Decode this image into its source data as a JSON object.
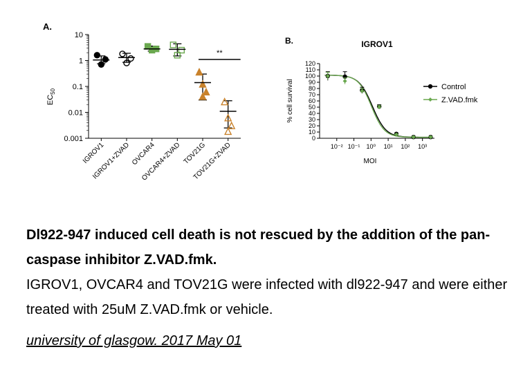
{
  "chart_data": [
    {
      "type": "scatter",
      "panel_label": "A.",
      "ylabel": "EC",
      "ylabel_sub": "50",
      "yscale": "log",
      "ylim": [
        0.001,
        10
      ],
      "yticks": [
        "0.001",
        "0.01",
        "0.1",
        "1",
        "10"
      ],
      "yticks_values": [
        0.001,
        0.01,
        0.1,
        1,
        10
      ],
      "categories": [
        "IGROV1",
        "IGROV1+ZVAD",
        "OVCAR4",
        "OVCAR4+ZVAD",
        "TOV21G",
        "TOV21G+ZVAD"
      ],
      "groups": [
        {
          "category": "IGROV1",
          "marker": "circle-filled",
          "color": "#000000",
          "values": [
            1.6,
            1.1,
            0.7
          ],
          "mean": 1.05,
          "err": [
            0.75,
            1.5
          ]
        },
        {
          "category": "IGROV1+ZVAD",
          "marker": "circle-open",
          "color": "#000000",
          "values": [
            1.8,
            1.2,
            0.8
          ],
          "mean": 1.3,
          "err": [
            0.85,
            1.9
          ]
        },
        {
          "category": "OVCAR4",
          "marker": "square-filled",
          "color": "#6aa84f",
          "values": [
            3.5,
            2.8,
            2.5
          ],
          "mean": 2.8,
          "err": [
            2.3,
            3.6
          ]
        },
        {
          "category": "OVCAR4+ZVAD",
          "marker": "square-open",
          "color": "#6aa84f",
          "values": [
            4.0,
            2.5,
            1.6
          ],
          "mean": 2.7,
          "err": [
            1.5,
            4.4
          ]
        },
        {
          "category": "TOV21G",
          "marker": "triangle-filled",
          "color": "#c9822b",
          "values": [
            0.35,
            0.12,
            0.06,
            0.04
          ],
          "mean": 0.14,
          "err": [
            0.03,
            0.3
          ]
        },
        {
          "category": "TOV21G+ZVAD",
          "marker": "triangle-open",
          "color": "#c9822b",
          "values": [
            0.025,
            0.006,
            0.003,
            0.0018
          ],
          "mean": 0.011,
          "err": [
            0.0025,
            0.028
          ]
        }
      ],
      "significance": {
        "label": "**",
        "from": "TOV21G",
        "to": "TOV21G+ZVAD"
      }
    },
    {
      "type": "line",
      "panel_label": "B.",
      "title": "IGROV1",
      "xlabel": "MOI",
      "ylabel": "% cell survival",
      "xscale": "log",
      "xlim": [
        0.01,
        1000
      ],
      "xticks": [
        "10⁻²",
        "10⁻¹",
        "10⁰",
        "10¹",
        "10²",
        "10³"
      ],
      "xticks_values": [
        0.01,
        0.1,
        1,
        10,
        100,
        1000
      ],
      "ylim": [
        0,
        120
      ],
      "yticks": [
        "0",
        "10",
        "20",
        "30",
        "40",
        "50",
        "60",
        "70",
        "80",
        "90",
        "100",
        "110",
        "120"
      ],
      "yticks_values": [
        0,
        10,
        20,
        30,
        40,
        50,
        60,
        70,
        80,
        90,
        100,
        110,
        120
      ],
      "legend_position": "right",
      "series": [
        {
          "name": "Control",
          "color": "#000000",
          "marker": "circle",
          "x": [
            0.003,
            0.03,
            0.3,
            3,
            30,
            300,
            3000
          ],
          "y": [
            100,
            99,
            77,
            51,
            7,
            2,
            2
          ],
          "err": [
            7,
            8,
            5,
            3,
            1,
            1,
            1
          ]
        },
        {
          "name": "Z.VAD.fmk",
          "color": "#6aa84f",
          "marker": "diamond",
          "x": [
            0.003,
            0.03,
            0.3,
            3,
            30,
            300,
            3000
          ],
          "y": [
            100,
            92,
            76,
            50,
            6,
            2,
            2
          ],
          "err": [
            6,
            5,
            4,
            3,
            1,
            1,
            1
          ]
        }
      ]
    }
  ],
  "caption": {
    "title": "Dl922-947 induced cell death is not rescued by the addition of the pan-caspase inhibitor Z.VAD.fmk.",
    "body": "IGROV1, OVCAR4 and TOV21G were infected with dl922-947 and were either treated with 25uM Z.VAD.fmk or vehicle.",
    "source": "university of glasgow. 2017 May 01"
  }
}
